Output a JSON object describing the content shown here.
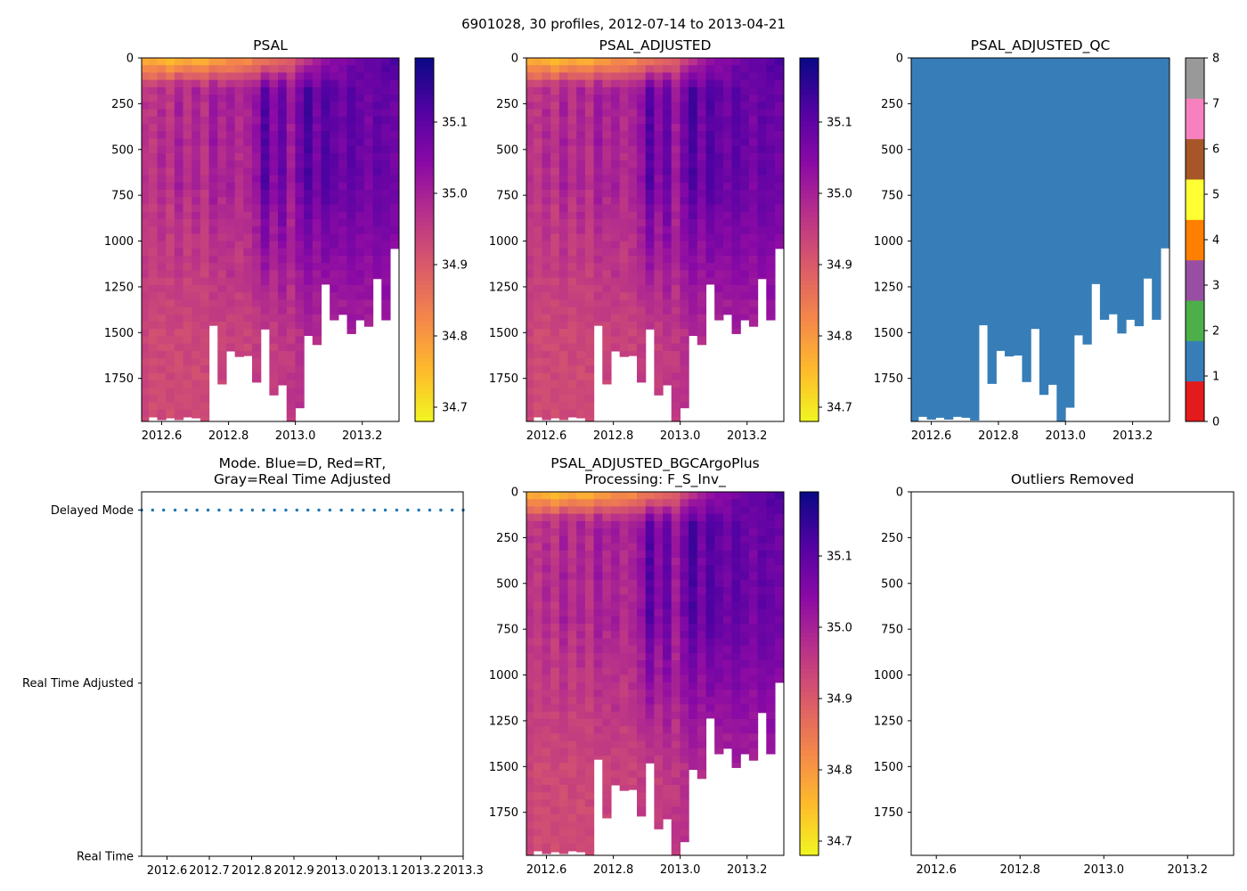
{
  "figure": {
    "suptitle": "6901028, 30 profiles, 2012-07-14 to 2013-04-21"
  },
  "chart_data": [
    {
      "id": "psal",
      "type": "heatmap",
      "title": "PSAL",
      "xlim": [
        2012.54,
        2013.31
      ],
      "ylim": [
        1985,
        0
      ],
      "x_ticks": [
        "2012.6",
        "2012.8",
        "2013.0",
        "2013.2"
      ],
      "y_ticks": [
        "0",
        "250",
        "500",
        "750",
        "1000",
        "1250",
        "1500",
        "1750"
      ],
      "colorbar": {
        "vmin": 34.68,
        "vmax": 35.19,
        "ticks": [
          "34.7",
          "34.8",
          "34.9",
          "35.0",
          "35.1"
        ],
        "cmap": "plasma_r"
      }
    },
    {
      "id": "psal_adj",
      "type": "heatmap",
      "title": "PSAL_ADJUSTED",
      "xlim": [
        2012.54,
        2013.31
      ],
      "ylim": [
        1985,
        0
      ],
      "x_ticks": [
        "2012.6",
        "2012.8",
        "2013.0",
        "2013.2"
      ],
      "y_ticks": [
        "0",
        "250",
        "500",
        "750",
        "1000",
        "1250",
        "1500",
        "1750"
      ],
      "colorbar": {
        "vmin": 34.68,
        "vmax": 35.19,
        "ticks": [
          "34.7",
          "34.8",
          "34.9",
          "35.0",
          "35.1"
        ],
        "cmap": "plasma_r"
      }
    },
    {
      "id": "psal_qc",
      "type": "heatmap",
      "title": "PSAL_ADJUSTED_QC",
      "xlim": [
        2012.54,
        2013.31
      ],
      "ylim": [
        1985,
        0
      ],
      "x_ticks": [
        "2012.6",
        "2012.8",
        "2013.0",
        "2013.2"
      ],
      "y_ticks": [
        "0",
        "250",
        "500",
        "750",
        "1000",
        "1250",
        "1500",
        "1750"
      ],
      "fill_qc_value": 1,
      "colorbar": {
        "categories": [
          "0",
          "1",
          "2",
          "3",
          "4",
          "5",
          "6",
          "7",
          "8"
        ],
        "colors": [
          "#e41a1c",
          "#377eb8",
          "#4daf4a",
          "#984ea3",
          "#ff7f00",
          "#ffff33",
          "#a65628",
          "#f781bf",
          "#999999"
        ]
      }
    },
    {
      "id": "mode",
      "type": "scatter",
      "title": [
        "Mode. Blue=D, Red=RT,",
        "Gray=Real Time Adjusted"
      ],
      "xlim": [
        2012.54,
        2013.3
      ],
      "x_ticks": [
        "2012.6",
        "2012.7",
        "2012.8",
        "2012.9",
        "2013.0",
        "2013.1",
        "2013.2",
        "2013.3"
      ],
      "y_categories": [
        "Real Time",
        "Real Time Adjusted",
        "Delayed Mode"
      ],
      "series": [
        {
          "name": "Delayed Mode",
          "color": "#1f77b4",
          "x": [
            2012.54,
            2012.566,
            2012.592,
            2012.619,
            2012.645,
            2012.671,
            2012.697,
            2012.723,
            2012.75,
            2012.776,
            2012.802,
            2012.828,
            2012.854,
            2012.881,
            2012.907,
            2012.933,
            2012.959,
            2012.985,
            2013.012,
            2013.038,
            2013.064,
            2013.09,
            2013.116,
            2013.143,
            2013.169,
            2013.195,
            2013.221,
            2013.247,
            2013.274,
            2013.3
          ],
          "y": "Delayed Mode"
        }
      ]
    },
    {
      "id": "psal_bgc",
      "type": "heatmap",
      "title": [
        "PSAL_ADJUSTED_BGCArgoPlus",
        "Processing: F_S_Inv_"
      ],
      "xlim": [
        2012.54,
        2013.31
      ],
      "ylim": [
        1985,
        0
      ],
      "x_ticks": [
        "2012.6",
        "2012.8",
        "2013.0",
        "2013.2"
      ],
      "y_ticks": [
        "0",
        "250",
        "500",
        "750",
        "1000",
        "1250",
        "1500",
        "1750"
      ],
      "colorbar": {
        "vmin": 34.68,
        "vmax": 35.19,
        "ticks": [
          "34.7",
          "34.8",
          "34.9",
          "35.0",
          "35.1"
        ],
        "cmap": "plasma_r"
      }
    },
    {
      "id": "outliers",
      "type": "scatter",
      "title": "Outliers Removed",
      "xlim": [
        2012.54,
        2013.31
      ],
      "ylim": [
        1985,
        0
      ],
      "x_ticks": [
        "2012.6",
        "2012.8",
        "2013.0",
        "2013.2"
      ],
      "y_ticks": [
        "0",
        "250",
        "500",
        "750",
        "1000",
        "1250",
        "1500",
        "1750"
      ],
      "series": []
    }
  ],
  "profiles": {
    "start_year": 2012.535,
    "step_year": 0.0258,
    "max_depth": [
      1990,
      1960,
      1975,
      1965,
      1975,
      1960,
      1965,
      1980,
      1460,
      1780,
      1600,
      1630,
      1625,
      1770,
      1480,
      1840,
      1785,
      1985,
      1910,
      1515,
      1565,
      1235,
      1430,
      1400,
      1505,
      1430,
      1465,
      1205,
      1430,
      1040
    ],
    "surface_salinity": [
      34.77,
      34.75,
      34.76,
      34.73,
      34.75,
      34.77,
      34.74,
      34.76,
      34.78,
      34.78,
      34.79,
      34.8,
      34.81,
      34.82,
      34.82,
      34.86,
      34.85,
      34.89,
      34.92,
      34.96,
      34.99,
      35.02,
      35.04,
      35.05,
      35.07,
      35.09,
      35.1,
      35.11,
      35.12,
      35.14
    ],
    "mid_salinity": [
      34.97,
      34.96,
      34.99,
      34.96,
      35.01,
      34.97,
      35.0,
      34.97,
      35.02,
      34.99,
      35.01,
      34.98,
      35.0,
      35.03,
      35.12,
      35.04,
      35.1,
      35.01,
      35.08,
      35.13,
      35.07,
      35.12,
      35.1,
      35.08,
      35.11,
      35.09,
      35.07,
      35.1,
      35.09,
      35.08
    ],
    "deep_salinity": [
      34.94,
      34.93,
      34.93,
      34.93,
      34.93,
      34.93,
      34.93,
      34.93,
      34.93,
      34.94,
      34.94,
      34.94,
      34.94,
      34.95,
      34.95,
      34.95,
      34.96,
      34.96,
      34.97,
      34.98,
      34.98,
      34.99,
      34.99,
      34.99,
      35.0,
      35.0,
      35.0,
      35.01,
      35.01,
      35.01
    ]
  }
}
